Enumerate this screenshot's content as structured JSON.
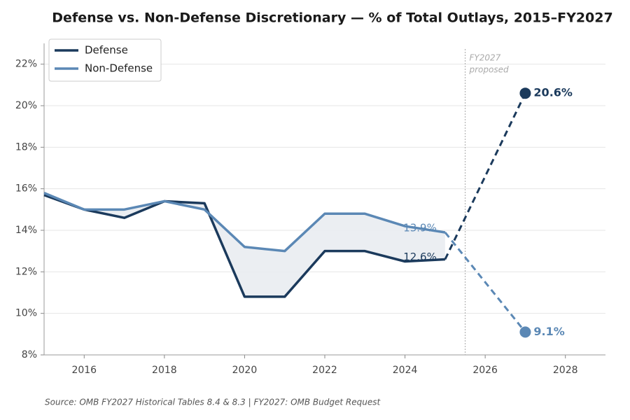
{
  "chart_data": {
    "type": "line",
    "title": "Defense vs. Non-Defense Discretionary — % of Total Outlays, 2015–FY2027",
    "x": [
      2015,
      2016,
      2017,
      2018,
      2019,
      2020,
      2021,
      2022,
      2023,
      2024,
      2025,
      2027
    ],
    "series": [
      {
        "name": "Defense",
        "color": "#1b3a5c",
        "values": [
          15.7,
          15.0,
          14.6,
          15.4,
          15.3,
          10.8,
          10.8,
          13.0,
          13.0,
          12.5,
          12.6,
          20.6
        ],
        "value_labels": [
          null,
          null,
          null,
          null,
          null,
          null,
          null,
          null,
          null,
          null,
          "12.6%",
          "20.6%"
        ]
      },
      {
        "name": "Non-Defense",
        "color": "#5b88b5",
        "values": [
          15.8,
          15.0,
          15.0,
          15.4,
          15.0,
          13.2,
          13.0,
          14.8,
          14.8,
          14.2,
          13.9,
          9.1
        ],
        "value_labels": [
          null,
          null,
          null,
          null,
          null,
          null,
          null,
          null,
          null,
          null,
          "13.9%",
          "9.1%"
        ]
      }
    ],
    "xlim": [
      2015,
      2029
    ],
    "xticks": [
      2016,
      2018,
      2020,
      2022,
      2024,
      2026,
      2028
    ],
    "ylim": [
      8,
      23
    ],
    "yticks": [
      {
        "value": 8,
        "label": "8%"
      },
      {
        "value": 10,
        "label": "10%"
      },
      {
        "value": 12,
        "label": "12%"
      },
      {
        "value": 14,
        "label": "14%"
      },
      {
        "value": 16,
        "label": "16%"
      },
      {
        "value": 18,
        "label": "18%"
      },
      {
        "value": 20,
        "label": "20%"
      },
      {
        "value": 22,
        "label": "22%"
      }
    ],
    "grid": true,
    "legend": "upper-left",
    "annotation": {
      "x": 2025.5,
      "lines": [
        "FY2027",
        "proposed"
      ]
    },
    "source": "Source: OMB FY2027 Historical Tables 8.4 & 8.3  |  FY2027: OMB Budget Request"
  }
}
